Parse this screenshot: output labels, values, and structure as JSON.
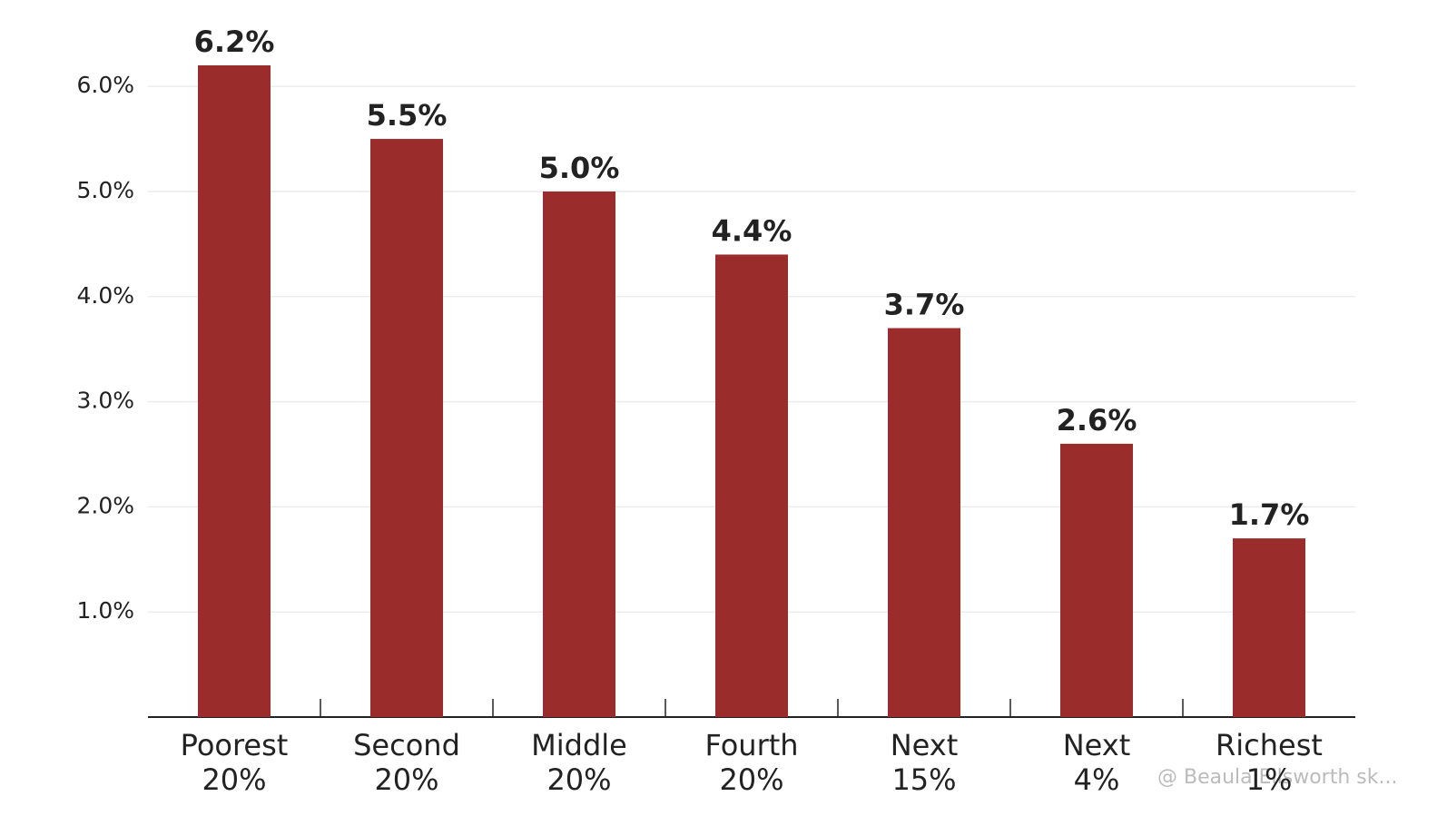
{
  "chart_data": {
    "type": "bar",
    "categories": [
      [
        "Poorest",
        "20%"
      ],
      [
        "Second",
        "20%"
      ],
      [
        "Middle",
        "20%"
      ],
      [
        "Fourth",
        "20%"
      ],
      [
        "Next",
        "15%"
      ],
      [
        "Next",
        "4%"
      ],
      [
        "Richest",
        "1%"
      ]
    ],
    "values": [
      6.2,
      5.5,
      5.0,
      4.4,
      3.7,
      2.6,
      1.7
    ],
    "value_labels": [
      "6.2%",
      "5.5%",
      "5.0%",
      "4.4%",
      "3.7%",
      "2.6%",
      "1.7%"
    ],
    "color": "#9b2c2c",
    "ylim": [
      0,
      6.2
    ],
    "yticks": [
      {
        "value": 1,
        "label": "1.0%"
      },
      {
        "value": 2,
        "label": "2.0%"
      },
      {
        "value": 3,
        "label": "3.0%"
      },
      {
        "value": 4,
        "label": "4.0%"
      },
      {
        "value": 5,
        "label": "5.0%"
      },
      {
        "value": 6,
        "label": "6.0%"
      }
    ],
    "grid": true,
    "watermark": "@ Beaula Ellsworth sk..."
  }
}
